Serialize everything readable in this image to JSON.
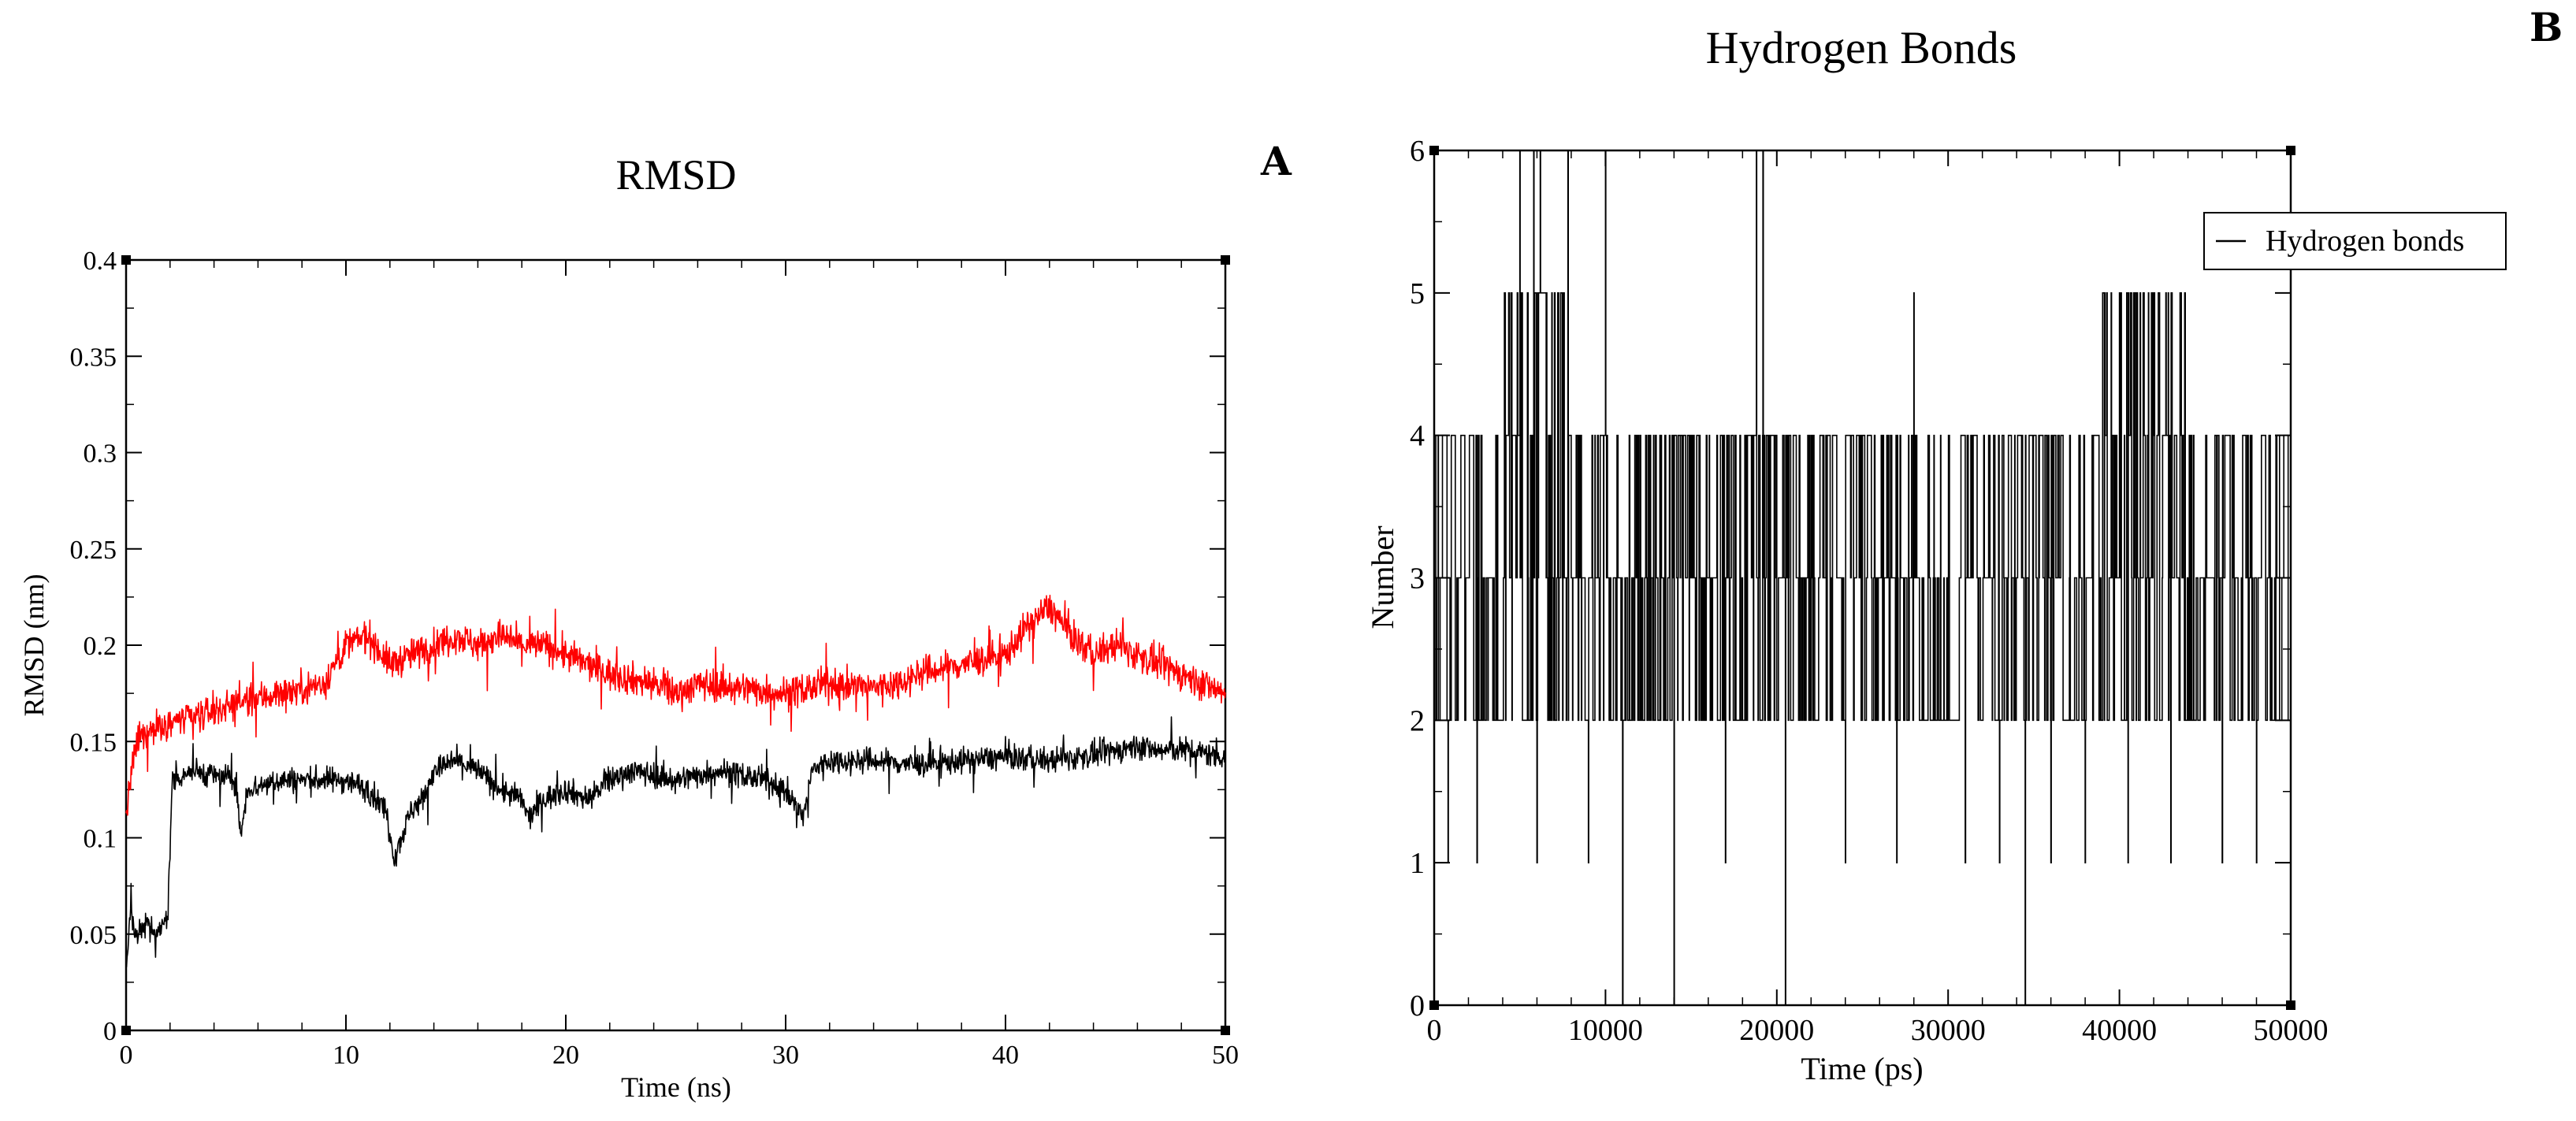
{
  "chart_data": [
    {
      "panel": "A",
      "type": "line",
      "title": "RMSD",
      "xlabel": "Time (ns)",
      "ylabel": "RMSD (nm)",
      "xlim": [
        0,
        50
      ],
      "ylim": [
        0,
        0.4
      ],
      "xticks": [
        0,
        10,
        20,
        30,
        40,
        50
      ],
      "xtick_labels": [
        "0",
        "10",
        "20",
        "30",
        "40",
        "50"
      ],
      "yticks": [
        0,
        0.05,
        0.1,
        0.15,
        0.2,
        0.25,
        0.3,
        0.35,
        0.4
      ],
      "ytick_labels": [
        "0",
        "0.05",
        "0.1",
        "0.15",
        "0.2",
        "0.25",
        "0.3",
        "0.35",
        "0.4"
      ],
      "grid": false,
      "legend": null,
      "series": [
        {
          "name": "red",
          "color": "#ff0000",
          "noise": 0.009,
          "x": [
            0,
            0.2,
            0.5,
            1,
            1.5,
            2,
            3,
            5,
            7,
            9,
            10,
            11,
            12,
            13,
            14,
            15,
            16,
            17,
            18,
            19,
            20,
            22,
            24,
            25,
            26,
            28,
            30,
            32,
            34,
            35,
            36,
            38,
            40,
            41,
            42,
            43,
            44,
            45,
            46,
            47,
            48,
            49,
            50
          ],
          "values": [
            0.11,
            0.13,
            0.15,
            0.155,
            0.158,
            0.16,
            0.162,
            0.17,
            0.175,
            0.18,
            0.2,
            0.205,
            0.19,
            0.195,
            0.2,
            0.205,
            0.2,
            0.205,
            0.2,
            0.2,
            0.195,
            0.185,
            0.18,
            0.175,
            0.18,
            0.178,
            0.175,
            0.18,
            0.178,
            0.18,
            0.185,
            0.19,
            0.195,
            0.21,
            0.22,
            0.205,
            0.195,
            0.2,
            0.195,
            0.19,
            0.185,
            0.18,
            0.175
          ]
        },
        {
          "name": "black",
          "color": "#000000",
          "noise": 0.007,
          "x": [
            0,
            0.2,
            0.5,
            1,
            1.5,
            1.9,
            2.1,
            3,
            5,
            5.2,
            5.5,
            7,
            9,
            10,
            11,
            11.8,
            12.2,
            13,
            13.5,
            14,
            15,
            16,
            17,
            18,
            18.3,
            19,
            20,
            21,
            22,
            23,
            25,
            27,
            29,
            30,
            30.8,
            31.2,
            32,
            34,
            36,
            38,
            40,
            42,
            44,
            45,
            46,
            47,
            48,
            49,
            50
          ],
          "values": [
            0.03,
            0.06,
            0.05,
            0.055,
            0.05,
            0.06,
            0.13,
            0.135,
            0.13,
            0.1,
            0.125,
            0.13,
            0.13,
            0.13,
            0.125,
            0.115,
            0.09,
            0.115,
            0.12,
            0.135,
            0.14,
            0.135,
            0.125,
            0.12,
            0.11,
            0.12,
            0.125,
            0.12,
            0.13,
            0.135,
            0.13,
            0.135,
            0.13,
            0.125,
            0.11,
            0.135,
            0.14,
            0.14,
            0.138,
            0.14,
            0.142,
            0.14,
            0.143,
            0.145,
            0.148,
            0.145,
            0.146,
            0.144,
            0.142
          ]
        }
      ]
    },
    {
      "panel": "B",
      "type": "line",
      "title": "Hydrogen Bonds",
      "xlabel": "Time (ps)",
      "ylabel": "Number",
      "xlim": [
        0,
        50000
      ],
      "ylim": [
        0,
        6
      ],
      "xticks": [
        0,
        10000,
        20000,
        30000,
        40000,
        50000
      ],
      "xtick_labels": [
        "0",
        "10000",
        "20000",
        "30000",
        "40000",
        "50000"
      ],
      "yticks": [
        0,
        1,
        2,
        3,
        4,
        5,
        6
      ],
      "ytick_labels": [
        "0",
        "1",
        "2",
        "3",
        "4",
        "5",
        "6"
      ],
      "grid": false,
      "legend_position": "top-right",
      "series": [
        {
          "name": "Hydrogen bonds",
          "color": "#000000",
          "band_start": [
            0,
            4000,
            8000,
            12000,
            18000,
            21000,
            30000,
            36000,
            39000,
            44000
          ],
          "band_end": [
            4000,
            8000,
            12000,
            18000,
            21000,
            30000,
            36000,
            39000,
            44000,
            50000
          ],
          "typical_min": [
            2,
            2,
            2,
            2,
            2,
            2,
            2,
            2,
            2,
            2
          ],
          "typical_max": [
            4,
            5,
            4,
            4,
            4,
            4,
            4,
            4,
            5,
            4
          ],
          "spikes_x": [
            5000,
            5800,
            6200,
            7800,
            10000,
            18800,
            19200,
            28000
          ],
          "spikes_values": [
            6,
            6,
            6,
            6,
            6,
            6,
            6,
            5
          ],
          "dips_x": [
            800,
            2500,
            6000,
            9000,
            11000,
            14000,
            17000,
            20500,
            24000,
            27000,
            31000,
            33000,
            34500,
            36000,
            38000,
            40500,
            43000,
            46000,
            48000
          ],
          "dips_values": [
            1,
            1,
            1,
            1,
            0,
            0,
            1,
            0,
            1,
            1,
            1,
            1,
            0,
            1,
            1,
            1,
            1,
            1,
            1
          ]
        }
      ]
    }
  ],
  "panels": {
    "a": {
      "label": "A",
      "title": "RMSD",
      "xlabel": "Time (ns)",
      "ylabel": "RMSD (nm)"
    },
    "b": {
      "label": "B",
      "title": "Hydrogen Bonds",
      "xlabel": "Time (ps)",
      "ylabel": "Number",
      "legend_label": "Hydrogen bonds"
    }
  }
}
